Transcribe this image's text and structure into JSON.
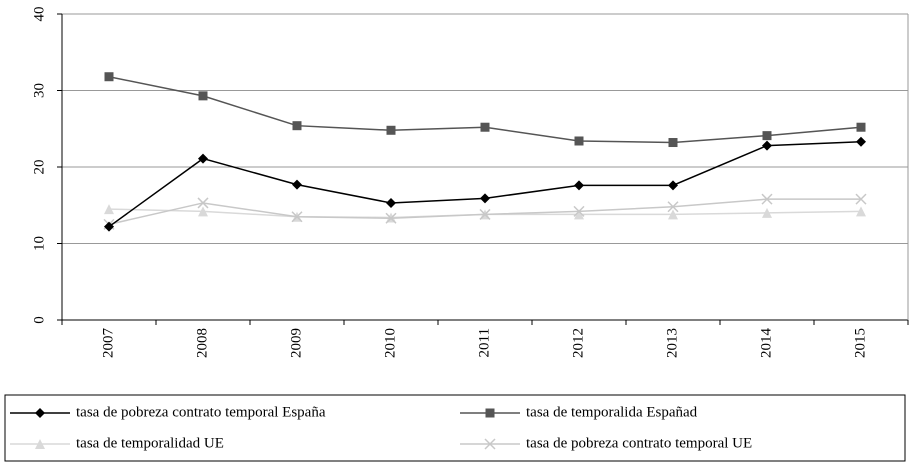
{
  "chart_data": {
    "type": "line",
    "categories": [
      "2007",
      "2008",
      "2009",
      "2010",
      "2011",
      "2012",
      "2013",
      "2014",
      "2015"
    ],
    "series": [
      {
        "name": "tasa de pobreza contrato temporal España",
        "color": "#000000",
        "marker": "diamond",
        "values": [
          12.2,
          21.1,
          17.7,
          15.3,
          15.9,
          17.6,
          17.6,
          22.8,
          23.3
        ]
      },
      {
        "name": "tasa de temporalida Españad",
        "color": "#555555",
        "marker": "square",
        "values": [
          31.8,
          29.3,
          25.4,
          24.8,
          25.2,
          23.4,
          23.2,
          24.1,
          25.2
        ]
      },
      {
        "name": "tasa de temporalidad UE",
        "color": "#d9d9d9",
        "marker": "triangle",
        "values": [
          14.5,
          14.2,
          13.5,
          13.4,
          13.8,
          13.8,
          13.8,
          14.0,
          14.2
        ]
      },
      {
        "name": "tasa de pobreza contrato temporal UE",
        "color": "#c8c8c8",
        "marker": "x",
        "values": [
          12.5,
          15.3,
          13.5,
          13.3,
          13.8,
          14.2,
          14.8,
          15.8,
          15.8
        ]
      }
    ],
    "ylim": [
      0,
      40
    ],
    "yticks": [
      0,
      10,
      20,
      30,
      40
    ],
    "grid": true
  }
}
